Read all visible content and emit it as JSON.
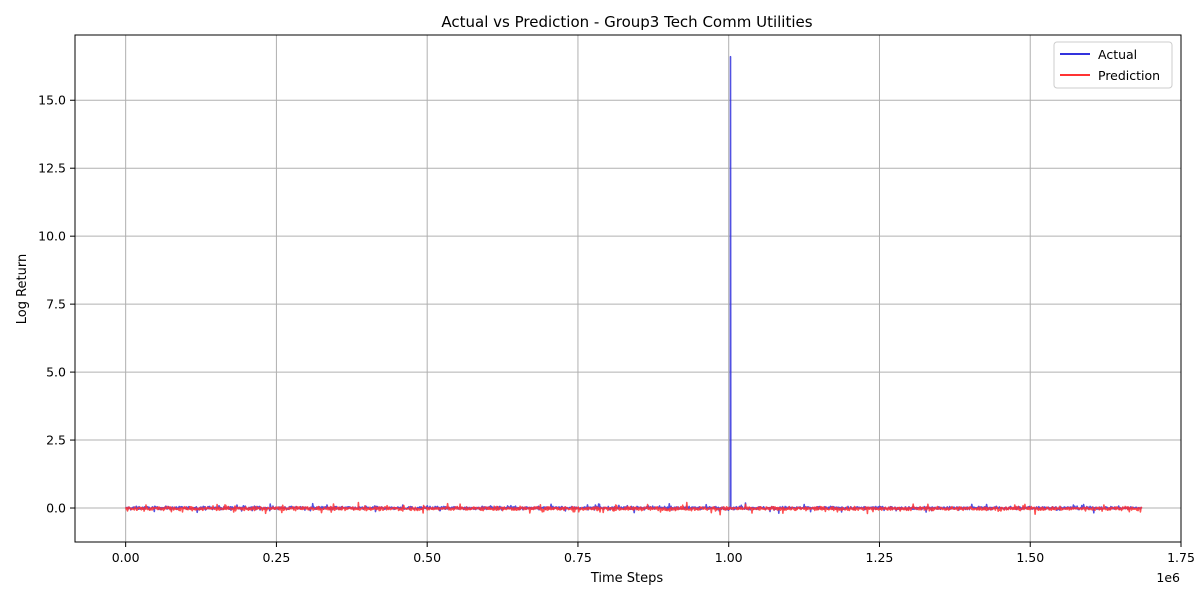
{
  "chart_data": {
    "type": "line",
    "title": "Actual vs Prediction - Group3 Tech Comm Utilities",
    "xlabel": "Time Steps",
    "ylabel": "Log Return",
    "x_offset_label": "1e6",
    "xlim": [
      -0.084,
      1.75
    ],
    "ylim": [
      -1.25,
      17.4
    ],
    "x_ticks": [
      0.0,
      0.25,
      0.5,
      0.75,
      1.0,
      1.25,
      1.5,
      1.75
    ],
    "x_tick_labels": [
      "0.00",
      "0.25",
      "0.50",
      "0.75",
      "1.00",
      "1.25",
      "1.50",
      "1.75"
    ],
    "y_ticks": [
      0.0,
      2.5,
      5.0,
      7.5,
      10.0,
      12.5,
      15.0
    ],
    "y_tick_labels": [
      "0.0",
      "2.5",
      "5.0",
      "7.5",
      "10.0",
      "12.5",
      "15.0"
    ],
    "grid": true,
    "legend_position": "upper right",
    "x_range": [
      0.0,
      1.685
    ],
    "series": [
      {
        "name": "Actual",
        "color": "#3333dd",
        "baseline": 0.0,
        "noise_amplitude": 0.1,
        "spike": {
          "x": 1.003,
          "y": 16.6
        }
      },
      {
        "name": "Prediction",
        "color": "#ff3333",
        "baseline": -0.02,
        "noise_amplitude": 0.12
      }
    ]
  }
}
